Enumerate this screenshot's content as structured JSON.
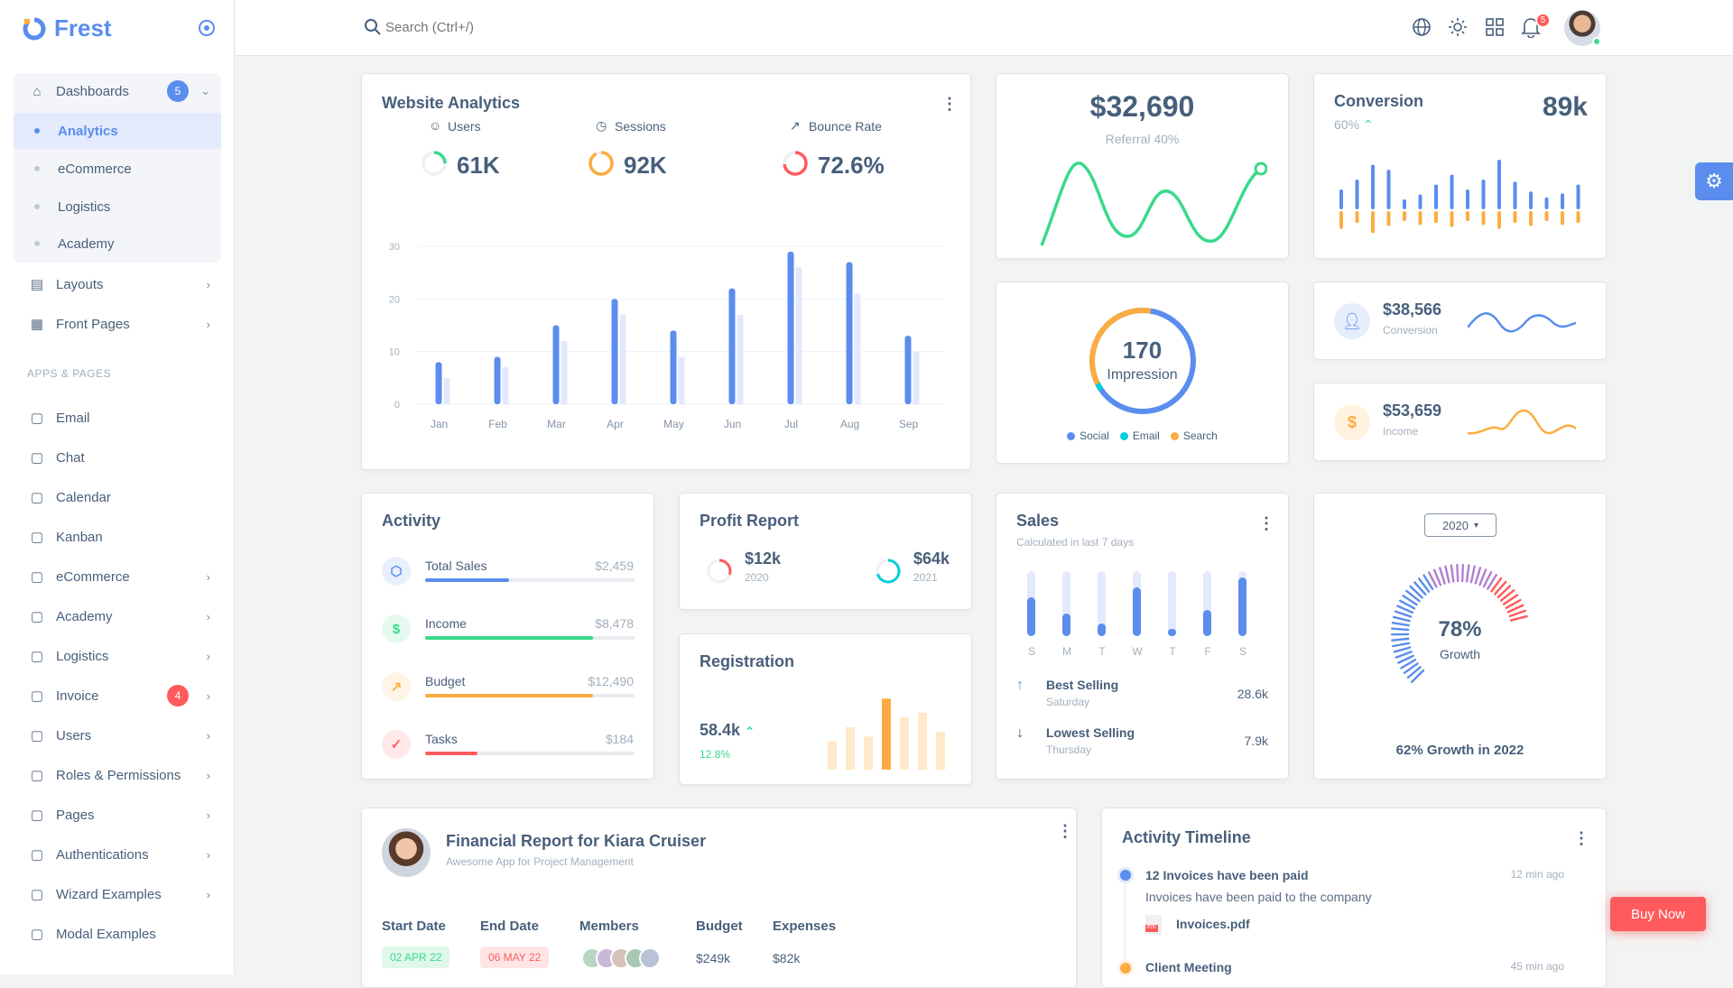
{
  "brand": {
    "name": "Frest",
    "color": "#5a8dee"
  },
  "sidebar": {
    "dashboards": {
      "label": "Dashboards",
      "badge": "5"
    },
    "sub": [
      "Analytics",
      "eCommerce",
      "Logistics",
      "Academy"
    ],
    "layouts": "Layouts",
    "front_pages": "Front Pages",
    "section": "APPS & PAGES",
    "items": [
      {
        "label": "Email",
        "icon": "mail-icon",
        "chev": false
      },
      {
        "label": "Chat",
        "icon": "chat-icon",
        "chev": false
      },
      {
        "label": "Calendar",
        "icon": "calendar-icon",
        "chev": false
      },
      {
        "label": "Kanban",
        "icon": "kanban-icon",
        "chev": false
      },
      {
        "label": "eCommerce",
        "icon": "cart-icon",
        "chev": true
      },
      {
        "label": "Academy",
        "icon": "book-icon",
        "chev": true
      },
      {
        "label": "Logistics",
        "icon": "truck-icon",
        "chev": true
      },
      {
        "label": "Invoice",
        "icon": "invoice-icon",
        "chev": true,
        "badge": "4"
      },
      {
        "label": "Users",
        "icon": "user-icon",
        "chev": true
      },
      {
        "label": "Roles & Permissions",
        "icon": "shield-icon",
        "chev": true
      },
      {
        "label": "Pages",
        "icon": "page-icon",
        "chev": true
      },
      {
        "label": "Authentications",
        "icon": "auth-icon",
        "chev": true
      },
      {
        "label": "Wizard Examples",
        "icon": "wizard-icon",
        "chev": true
      },
      {
        "label": "Modal Examples",
        "icon": "modal-icon",
        "chev": false
      }
    ]
  },
  "topbar": {
    "search_placeholder": "Search (Ctrl+/)",
    "notifications": "5"
  },
  "analytics": {
    "title": "Website Analytics",
    "stats": [
      {
        "label": "Users",
        "value": "61K",
        "color": "#39da8a",
        "fill": 0.25
      },
      {
        "label": "Sessions",
        "value": "92K",
        "color": "#fdac41",
        "fill": 0.92
      },
      {
        "label": "Bounce Rate",
        "value": "72.6%",
        "color": "#ff5b5c",
        "fill": 0.73
      }
    ],
    "chart_data": {
      "type": "bar",
      "categories": [
        "Jan",
        "Feb",
        "Mar",
        "Apr",
        "May",
        "Jun",
        "Jul",
        "Aug",
        "Sep"
      ],
      "series": [
        {
          "values": [
            8,
            9,
            15,
            20,
            14,
            22,
            29,
            27,
            13
          ],
          "color": "#5a8dee"
        },
        {
          "values": [
            5,
            7,
            12,
            17,
            9,
            17,
            26,
            21,
            10
          ],
          "color": "#e2e9fb"
        }
      ],
      "yticks": [
        0,
        10,
        20,
        30
      ],
      "ylim": [
        0,
        30
      ],
      "grid": true
    }
  },
  "referral": {
    "amount": "$32,690",
    "label": "Referral 40%"
  },
  "conversion": {
    "title": "Conversion",
    "value": "89k",
    "pct": "60%",
    "up": [
      20,
      30,
      45,
      40,
      10,
      15,
      25,
      35,
      20,
      30,
      50,
      28,
      18,
      12,
      16,
      25
    ],
    "down": [
      18,
      12,
      22,
      15,
      10,
      14,
      12,
      16,
      10,
      14,
      18,
      12,
      15,
      10,
      14,
      12
    ]
  },
  "impression": {
    "value": "170",
    "label": "Impression",
    "legend": [
      {
        "label": "Social",
        "color": "#5a8dee"
      },
      {
        "label": "Email",
        "color": "#00cfdd"
      },
      {
        "label": "Search",
        "color": "#fdac41"
      }
    ]
  },
  "stat1": {
    "value": "$38,566",
    "label": "Conversion",
    "color": "#5a8dee"
  },
  "stat2": {
    "value": "$53,659",
    "label": "Income",
    "color": "#fdac41"
  },
  "activity": {
    "title": "Activity",
    "items": [
      {
        "label": "Total Sales",
        "value": "$2,459",
        "progress": 0.4,
        "color": "#5a8dee",
        "icon": "box-icon",
        "glyph": "⬡"
      },
      {
        "label": "Income",
        "value": "$8,478",
        "progress": 0.8,
        "color": "#39da8a",
        "icon": "dollar-icon",
        "glyph": "$"
      },
      {
        "label": "Budget",
        "value": "$12,490",
        "progress": 0.8,
        "color": "#fdac41",
        "icon": "trending-icon",
        "glyph": "↗"
      },
      {
        "label": "Tasks",
        "value": "$184",
        "progress": 0.25,
        "color": "#ff5b5c",
        "icon": "check-icon",
        "glyph": "✓"
      }
    ]
  },
  "profit": {
    "title": "Profit Report",
    "items": [
      {
        "value": "$12k",
        "year": "2020",
        "color": "#ff5b5c",
        "fill": 0.3
      },
      {
        "value": "$64k",
        "year": "2021",
        "color": "#00cfdd",
        "fill": 0.7
      }
    ]
  },
  "registration": {
    "title": "Registration",
    "value": "58.4k",
    "change": "12.8%",
    "bars": [
      30,
      45,
      35,
      75,
      55,
      60,
      40
    ]
  },
  "sales": {
    "title": "Sales",
    "subtitle": "Calculated in last 7 days",
    "days": [
      "S",
      "M",
      "T",
      "W",
      "T",
      "F",
      "S"
    ],
    "levels": [
      0.6,
      0.35,
      0.2,
      0.75,
      0.1,
      0.4,
      0.9
    ],
    "best": {
      "label": "Best Selling",
      "day": "Saturday",
      "value": "28.6k"
    },
    "lowest": {
      "label": "Lowest Selling",
      "day": "Thursday",
      "value": "7.9k"
    }
  },
  "growth": {
    "year": "2020",
    "value": "78%",
    "label": "Growth",
    "progress": 0.78,
    "footer": "62% Growth in 2022"
  },
  "finance": {
    "title": "Financial Report for Kiara Cruiser",
    "subtitle": "Awesome App for Project Management",
    "headers": [
      "Start Date",
      "End Date",
      "Members",
      "Budget",
      "Expenses"
    ],
    "start": "02 APR 22",
    "end": "06 MAY 22",
    "budget": "$249k",
    "expenses": "$82k"
  },
  "timeline": {
    "title": "Activity Timeline",
    "items": [
      {
        "title": "12 Invoices have been paid",
        "time": "12 min ago",
        "desc": "Invoices have been paid to the company",
        "file": "Invoices.pdf",
        "color": "#5a8dee"
      },
      {
        "title": "Client Meeting",
        "time": "45 min ago",
        "color": "#fdac41"
      }
    ]
  },
  "buy_now": "Buy Now"
}
